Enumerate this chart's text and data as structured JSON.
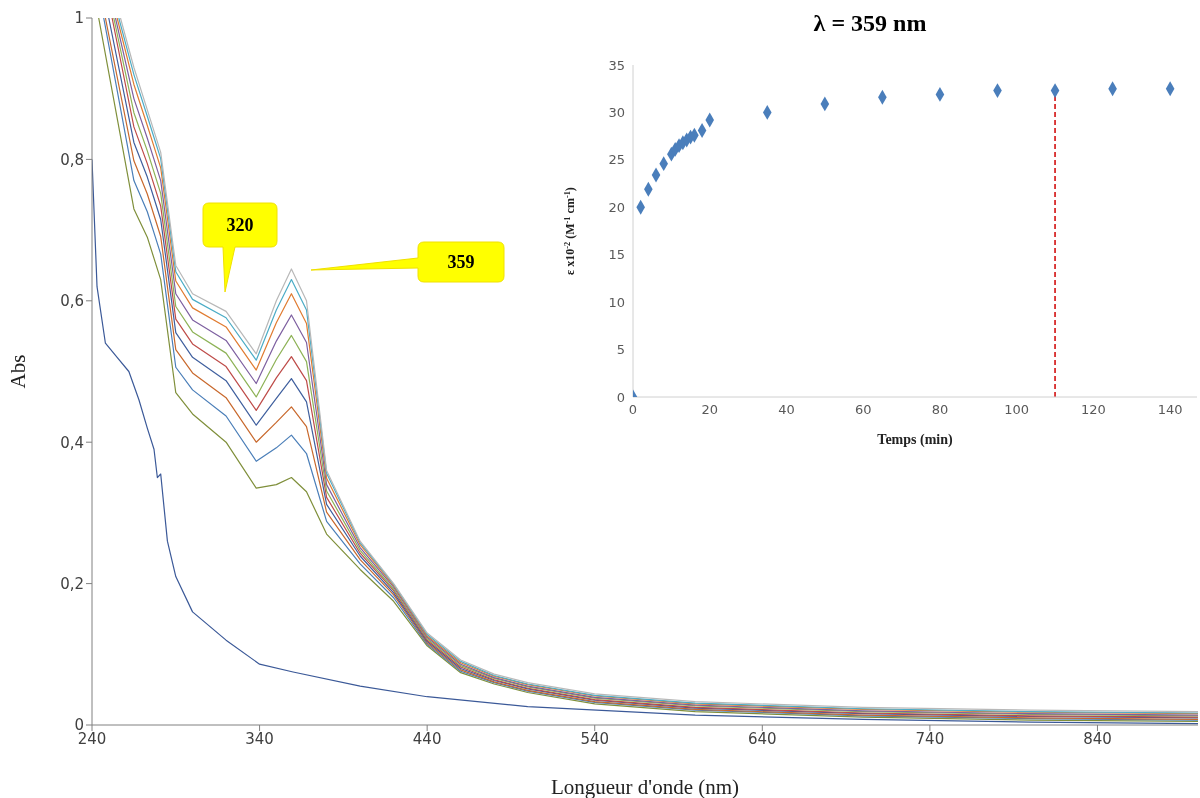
{
  "chart_data": [
    {
      "type": "line",
      "xlabel": "Longueur d'onde (nm)",
      "ylabel": "Abs",
      "xlim": [
        240,
        900
      ],
      "ylim": [
        0,
        1
      ],
      "xticks": [
        240,
        340,
        440,
        540,
        640,
        740,
        840
      ],
      "yticks": [
        0,
        {
          "value": 0.2,
          "label": "0,2"
        },
        {
          "value": 0.4,
          "label": "0,4"
        },
        {
          "value": 0.6,
          "label": "0,6"
        },
        {
          "value": 0.8,
          "label": "0,8"
        },
        1
      ],
      "grid": false,
      "marker": "none",
      "annotations": [
        "320",
        "359"
      ],
      "series": [
        {
          "color": "#3b5998",
          "x": [
            240,
            243,
            248,
            255,
            262,
            268,
            273,
            277,
            279,
            281,
            285,
            290,
            300,
            320,
            340,
            360,
            400,
            440,
            500,
            600,
            700,
            800,
            900
          ],
          "values": [
            0.8,
            0.62,
            0.54,
            0.52,
            0.5,
            0.46,
            0.42,
            0.39,
            0.35,
            0.355,
            0.26,
            0.21,
            0.16,
            0.12,
            0.086,
            0.075,
            0.055,
            0.04,
            0.026,
            0.014,
            0.008,
            0.004,
            0.002
          ]
        },
        {
          "color": "#7f8f3a",
          "x": [
            244,
            265,
            273,
            277,
            281,
            290,
            300,
            320,
            338,
            350,
            359,
            368,
            380,
            400,
            420,
            440,
            460,
            480,
            500,
            540,
            600,
            700,
            800,
            900
          ],
          "values": [
            1,
            0.73,
            0.69,
            0.66,
            0.63,
            0.47,
            0.44,
            0.4,
            0.335,
            0.34,
            0.35,
            0.33,
            0.27,
            0.22,
            0.175,
            0.112,
            0.074,
            0.058,
            0.046,
            0.03,
            0.019,
            0.011,
            0.007,
            0.005
          ]
        },
        {
          "color": "#4a7eb8",
          "x": [
            247,
            265,
            273,
            277,
            281,
            290,
            300,
            320,
            338,
            350,
            359,
            368,
            380,
            400,
            420,
            440,
            460,
            480,
            500,
            540,
            600,
            700,
            800,
            900
          ],
          "values": [
            1,
            0.77,
            0.726,
            0.696,
            0.666,
            0.506,
            0.474,
            0.437,
            0.373,
            0.392,
            0.41,
            0.384,
            0.288,
            0.228,
            0.18,
            0.114,
            0.076,
            0.06,
            0.048,
            0.032,
            0.021,
            0.013,
            0.009,
            0.007
          ]
        },
        {
          "color": "#c8682c",
          "x": [
            248,
            265,
            273,
            277,
            281,
            290,
            300,
            320,
            338,
            350,
            359,
            368,
            380,
            400,
            420,
            440,
            460,
            480,
            500,
            540,
            600,
            700,
            800,
            900
          ],
          "values": [
            1,
            0.798,
            0.751,
            0.721,
            0.691,
            0.531,
            0.498,
            0.463,
            0.4,
            0.428,
            0.45,
            0.422,
            0.301,
            0.234,
            0.184,
            0.116,
            0.078,
            0.061,
            0.049,
            0.033,
            0.022,
            0.014,
            0.01,
            0.008
          ]
        },
        {
          "color": "#3f5f9e",
          "x": [
            250,
            265,
            273,
            277,
            281,
            290,
            300,
            320,
            338,
            350,
            359,
            368,
            380,
            400,
            420,
            440,
            460,
            480,
            500,
            540,
            600,
            700,
            800,
            900
          ],
          "values": [
            1,
            0.824,
            0.775,
            0.745,
            0.715,
            0.555,
            0.52,
            0.487,
            0.424,
            0.462,
            0.49,
            0.457,
            0.312,
            0.239,
            0.187,
            0.118,
            0.08,
            0.063,
            0.051,
            0.035,
            0.024,
            0.016,
            0.012,
            0.01
          ]
        },
        {
          "color": "#be4b48",
          "x": [
            252,
            265,
            273,
            277,
            281,
            290,
            300,
            320,
            338,
            350,
            359,
            368,
            380,
            400,
            420,
            440,
            460,
            480,
            500,
            540,
            600,
            700,
            800,
            900
          ],
          "values": [
            1,
            0.846,
            0.794,
            0.764,
            0.734,
            0.574,
            0.539,
            0.507,
            0.445,
            0.491,
            0.521,
            0.487,
            0.322,
            0.243,
            0.19,
            0.12,
            0.082,
            0.064,
            0.052,
            0.036,
            0.025,
            0.017,
            0.013,
            0.011
          ]
        },
        {
          "color": "#8db256",
          "x": [
            253,
            265,
            273,
            277,
            281,
            290,
            300,
            320,
            338,
            350,
            359,
            368,
            380,
            400,
            420,
            440,
            460,
            480,
            500,
            540,
            600,
            700,
            800,
            900
          ],
          "values": [
            1,
            0.866,
            0.812,
            0.782,
            0.752,
            0.592,
            0.556,
            0.526,
            0.464,
            0.517,
            0.551,
            0.514,
            0.331,
            0.247,
            0.192,
            0.122,
            0.084,
            0.066,
            0.054,
            0.038,
            0.027,
            0.019,
            0.015,
            0.013
          ]
        },
        {
          "color": "#7d5fa0",
          "x": [
            254,
            265,
            273,
            277,
            281,
            290,
            300,
            320,
            338,
            350,
            359,
            368,
            380,
            400,
            420,
            440,
            460,
            480,
            500,
            540,
            600,
            700,
            800,
            900
          ],
          "values": [
            1,
            0.886,
            0.83,
            0.8,
            0.77,
            0.61,
            0.573,
            0.544,
            0.483,
            0.543,
            0.58,
            0.541,
            0.34,
            0.251,
            0.195,
            0.124,
            0.086,
            0.067,
            0.055,
            0.039,
            0.028,
            0.02,
            0.016,
            0.014
          ]
        },
        {
          "color": "#e07b30",
          "x": [
            255,
            265,
            273,
            277,
            281,
            290,
            300,
            320,
            338,
            350,
            359,
            368,
            380,
            400,
            420,
            440,
            460,
            480,
            500,
            540,
            600,
            700,
            800,
            900
          ],
          "values": [
            1,
            0.906,
            0.848,
            0.818,
            0.788,
            0.628,
            0.59,
            0.563,
            0.502,
            0.569,
            0.61,
            0.568,
            0.349,
            0.255,
            0.197,
            0.126,
            0.088,
            0.069,
            0.057,
            0.041,
            0.03,
            0.022,
            0.018,
            0.016
          ]
        },
        {
          "color": "#4bacc6",
          "x": [
            256,
            265,
            273,
            277,
            281,
            290,
            300,
            320,
            338,
            350,
            359,
            368,
            380,
            400,
            420,
            440,
            460,
            480,
            500,
            540,
            600,
            700,
            800,
            900
          ],
          "values": [
            1,
            0.92,
            0.861,
            0.831,
            0.801,
            0.641,
            0.602,
            0.576,
            0.516,
            0.587,
            0.63,
            0.587,
            0.356,
            0.258,
            0.199,
            0.128,
            0.09,
            0.07,
            0.058,
            0.042,
            0.031,
            0.023,
            0.019,
            0.017
          ]
        },
        {
          "color": "#b8b8b8",
          "x": [
            257,
            265,
            273,
            277,
            281,
            290,
            300,
            320,
            338,
            350,
            359,
            368,
            380,
            400,
            420,
            440,
            460,
            480,
            500,
            540,
            600,
            700,
            800,
            900
          ],
          "values": [
            1,
            0.93,
            0.87,
            0.84,
            0.81,
            0.65,
            0.61,
            0.585,
            0.525,
            0.6,
            0.645,
            0.6,
            0.36,
            0.26,
            0.2,
            0.13,
            0.092,
            0.072,
            0.06,
            0.044,
            0.033,
            0.025,
            0.021,
            0.019
          ]
        }
      ]
    },
    {
      "type": "scatter",
      "title": "λ = 359 nm",
      "xlabel": "Temps (min)",
      "ylabel": "ε x10$^{-2}$ (M$^{-1}$ cm$^{-1}$)",
      "xlim": [
        0,
        147
      ],
      "ylim": [
        0,
        35
      ],
      "xticks": [
        0,
        20,
        40,
        60,
        80,
        100,
        120,
        140
      ],
      "yticks": [
        0,
        5,
        10,
        15,
        20,
        25,
        30,
        35
      ],
      "grid": false,
      "marker": "diamond",
      "x": [
        0,
        2,
        4,
        6,
        8,
        10,
        11,
        12,
        13,
        14,
        15,
        16,
        18,
        20,
        35,
        50,
        65,
        80,
        95,
        110,
        125,
        140
      ],
      "series": [
        {
          "color": "#4a7ebb",
          "values": [
            0,
            20,
            21.9,
            23.4,
            24.6,
            25.6,
            26.1,
            26.5,
            26.8,
            27.1,
            27.4,
            27.6,
            28.1,
            29.2,
            30,
            30.9,
            31.6,
            31.9,
            32.3,
            32.3,
            32.5,
            32.5
          ]
        }
      ],
      "ref_lines": [
        {
          "axis": "x",
          "value": 110,
          "color": "#d00000",
          "line_style": "dashed"
        }
      ]
    }
  ]
}
